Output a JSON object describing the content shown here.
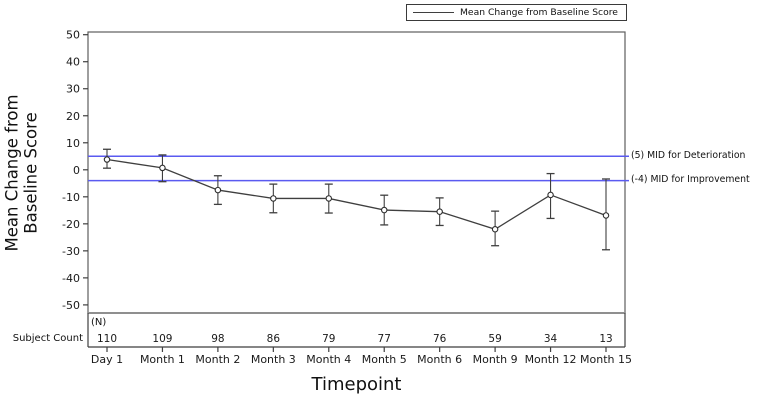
{
  "axes": {
    "y_title_line1": "Mean Change from",
    "y_title_line2": "Baseline Score",
    "x_title": "Timepoint"
  },
  "subject_count": {
    "label": "Subject Count",
    "n_label": "(N)"
  },
  "colors": {
    "reference_line": "#5a5af0",
    "series_line": "#3f3f3f",
    "marker_stroke": "#2e2e2e",
    "marker_fill": "#ffffff",
    "frame": "#5e5e5e",
    "band_top": "#8f8f8f",
    "axis": "#3f3f3f",
    "text": "#1a1a1a",
    "background": "#ffffff"
  },
  "chart_data": {
    "type": "line",
    "title": "",
    "xlabel": "Timepoint",
    "ylabel": "Mean Change from Baseline Score",
    "categories": [
      "Day 1",
      "Month 1",
      "Month 2",
      "Month 3",
      "Month 4",
      "Month 5",
      "Month 6",
      "Month 9",
      "Month 12",
      "Month 15"
    ],
    "series": [
      {
        "name": "Mean Change from Baseline Score",
        "values": [
          3.8,
          0.7,
          -7.5,
          -10.6,
          -10.6,
          -14.9,
          -15.5,
          -22.0,
          -9.3,
          -16.9
        ],
        "upper_ci": [
          7.6,
          5.5,
          -2.2,
          -5.3,
          -5.3,
          -9.4,
          -10.4,
          -15.3,
          -1.4,
          -3.4
        ],
        "lower_ci": [
          0.6,
          -4.4,
          -12.8,
          -15.9,
          -16.0,
          -20.4,
          -20.6,
          -28.1,
          -18.0,
          -29.6
        ]
      }
    ],
    "subject_counts": [
      110,
      109,
      98,
      86,
      79,
      77,
      76,
      59,
      34,
      13
    ],
    "yticks": [
      50,
      40,
      30,
      20,
      10,
      0,
      -10,
      -20,
      -30,
      -40,
      -50
    ],
    "ylim": [
      -50,
      50
    ],
    "grid": false,
    "error_bars": true,
    "reference_lines": [
      {
        "y": 5,
        "label": "(5) MID for Deterioration"
      },
      {
        "y": -4,
        "label": "(-4) MID for Improvement"
      }
    ],
    "legend": {
      "position": "top-right",
      "entries": [
        "Mean Change from Baseline Score"
      ]
    }
  }
}
